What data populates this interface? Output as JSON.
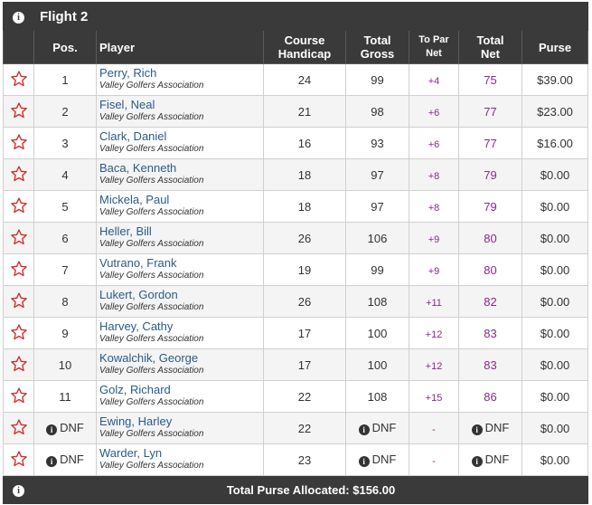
{
  "flight": {
    "title": "Flight 2"
  },
  "columns": {
    "pos": "Pos.",
    "player": "Player",
    "course_handicap": [
      "Course",
      "Handicap"
    ],
    "total_gross": [
      "Total",
      "Gross"
    ],
    "to_par_net": [
      "To Par",
      "Net"
    ],
    "total_net": [
      "Total",
      "Net"
    ],
    "purse": "Purse"
  },
  "rows": [
    {
      "pos": "1",
      "name": "Perry, Rich",
      "assoc": "Valley Golfers Association",
      "handicap": "24",
      "gross": "99",
      "topar": "+4",
      "net": "75",
      "purse": "$39.00"
    },
    {
      "pos": "2",
      "name": "Fisel, Neal",
      "assoc": "Valley Golfers Association",
      "handicap": "21",
      "gross": "98",
      "topar": "+6",
      "net": "77",
      "purse": "$23.00"
    },
    {
      "pos": "3",
      "name": "Clark, Daniel",
      "assoc": "Valley Golfers Association",
      "handicap": "16",
      "gross": "93",
      "topar": "+6",
      "net": "77",
      "purse": "$16.00"
    },
    {
      "pos": "4",
      "name": "Baca, Kenneth",
      "assoc": "Valley Golfers Association",
      "handicap": "18",
      "gross": "97",
      "topar": "+8",
      "net": "79",
      "purse": "$0.00"
    },
    {
      "pos": "5",
      "name": "Mickela, Paul",
      "assoc": "Valley Golfers Association",
      "handicap": "18",
      "gross": "97",
      "topar": "+8",
      "net": "79",
      "purse": "$0.00"
    },
    {
      "pos": "6",
      "name": "Heller, Bill",
      "assoc": "Valley Golfers Association",
      "handicap": "26",
      "gross": "106",
      "topar": "+9",
      "net": "80",
      "purse": "$0.00"
    },
    {
      "pos": "7",
      "name": "Vutrano, Frank",
      "assoc": "Valley Golfers Association",
      "handicap": "19",
      "gross": "99",
      "topar": "+9",
      "net": "80",
      "purse": "$0.00"
    },
    {
      "pos": "8",
      "name": "Lukert, Gordon",
      "assoc": "Valley Golfers Association",
      "handicap": "26",
      "gross": "108",
      "topar": "+11",
      "net": "82",
      "purse": "$0.00"
    },
    {
      "pos": "9",
      "name": "Harvey, Cathy",
      "assoc": "Valley Golfers Association",
      "handicap": "17",
      "gross": "100",
      "topar": "+12",
      "net": "83",
      "purse": "$0.00"
    },
    {
      "pos": "10",
      "name": "Kowalchik, George",
      "assoc": "Valley Golfers Association",
      "handicap": "17",
      "gross": "100",
      "topar": "+12",
      "net": "83",
      "purse": "$0.00"
    },
    {
      "pos": "11",
      "name": "Golz, Richard",
      "assoc": "Valley Golfers Association",
      "handicap": "22",
      "gross": "108",
      "topar": "+15",
      "net": "86",
      "purse": "$0.00"
    },
    {
      "pos": "DNF",
      "name": "Ewing, Harley",
      "assoc": "Valley Golfers Association",
      "handicap": "22",
      "gross": "DNF",
      "topar": "-",
      "net": "DNF",
      "purse": "$0.00",
      "dnf": true
    },
    {
      "pos": "DNF",
      "name": "Warder, Lyn",
      "assoc": "Valley Golfers Association",
      "handicap": "23",
      "gross": "DNF",
      "topar": "-",
      "net": "DNF",
      "purse": "$0.00",
      "dnf": true
    }
  ],
  "footer": {
    "total_purse": "Total Purse Allocated: $156.00"
  },
  "icons": {
    "favorite": "star-icon",
    "info": "info-icon"
  },
  "colors": {
    "header_bg": "#3a3a3a",
    "star": "#d42a2a",
    "name_link": "#2b5a8a",
    "net_purple": "#8a2a8a"
  }
}
